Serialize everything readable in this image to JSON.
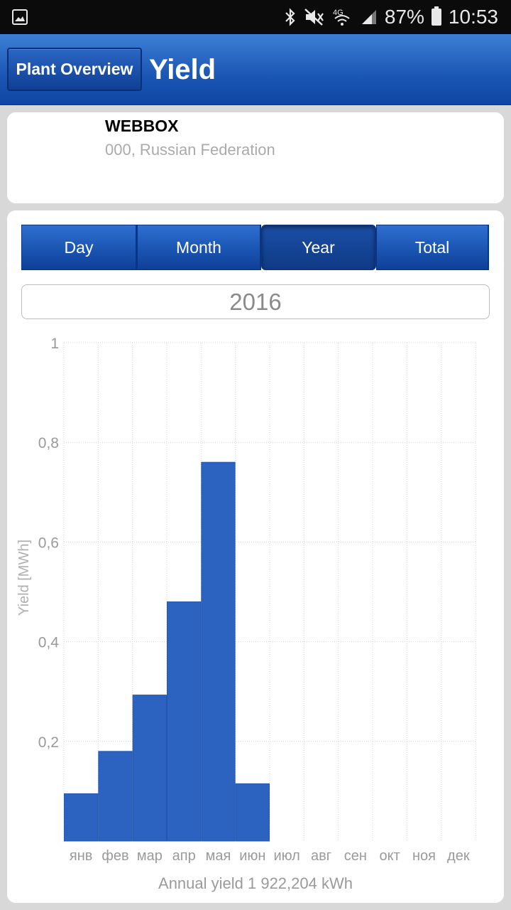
{
  "status_bar": {
    "battery": "87%",
    "time": "10:53",
    "icons": [
      "image-icon",
      "bluetooth-icon",
      "mute-icon",
      "signal-4g-icon",
      "cell-signal-icon",
      "battery-icon"
    ]
  },
  "header": {
    "back_label": "Plant Overview",
    "title": "Yield",
    "colors": {
      "top": "#3d7fd6",
      "bottom": "#0f46a3"
    }
  },
  "plant": {
    "name": "WEBBOX",
    "location": "000, Russian Federation"
  },
  "tabs": {
    "items": [
      {
        "label": "Day"
      },
      {
        "label": "Month"
      },
      {
        "label": "Year"
      },
      {
        "label": "Total"
      }
    ],
    "active": "Year"
  },
  "period": "2016",
  "footer": "Annual yield 1 922,204 kWh",
  "chart_data": {
    "type": "bar",
    "categories": [
      "янв",
      "фев",
      "мар",
      "апр",
      "мая",
      "июн",
      "июл",
      "авг",
      "сен",
      "окт",
      "ноя",
      "дек"
    ],
    "values": [
      0.095,
      0.18,
      0.293,
      0.48,
      0.76,
      0.115,
      0,
      0,
      0,
      0,
      0,
      0
    ],
    "ylabel": "Yield [MWh]",
    "ylim": [
      0,
      1
    ],
    "yticks": [
      "0,2",
      "0,4",
      "0,6",
      "0,8",
      "1"
    ],
    "grid": true,
    "bar_color": "#2d63c0"
  }
}
